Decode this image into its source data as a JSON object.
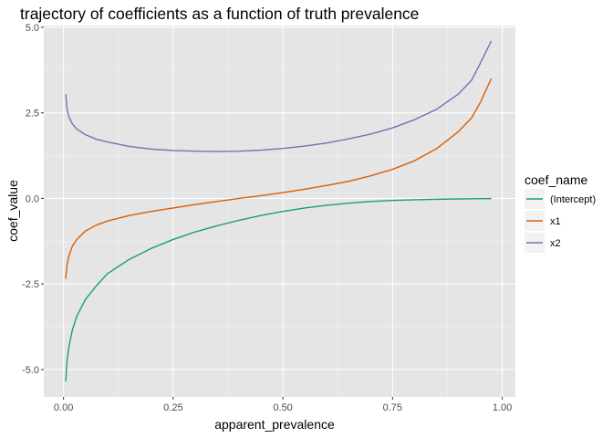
{
  "chart_data": {
    "type": "line",
    "title": "trajectory of coefficients as a function of truth prevalence",
    "xlabel": "apparent_prevalence",
    "ylabel": "coef_value",
    "xlim": [
      -0.045,
      1.03
    ],
    "ylim": [
      -5.8,
      5.05
    ],
    "x_ticks": [
      0.0,
      0.25,
      0.5,
      0.75,
      1.0
    ],
    "x_tick_labels": [
      "0.00",
      "0.25",
      "0.50",
      "0.75",
      "1.00"
    ],
    "y_ticks": [
      -5.0,
      -2.5,
      0.0,
      2.5,
      5.0
    ],
    "y_tick_labels": [
      "-5.0",
      "-2.5",
      "0.0",
      "2.5",
      "5.0"
    ],
    "grid": true,
    "background": "#e5e5e5",
    "legend": {
      "title": "coef_name",
      "position": "right"
    },
    "series": [
      {
        "name": "(Intercept)",
        "color": "#1b9e77",
        "x": [
          0.005,
          0.008,
          0.012,
          0.02,
          0.03,
          0.05,
          0.075,
          0.1,
          0.15,
          0.2,
          0.25,
          0.3,
          0.35,
          0.4,
          0.45,
          0.5,
          0.55,
          0.6,
          0.65,
          0.7,
          0.75,
          0.8,
          0.85,
          0.9,
          0.95,
          0.975
        ],
        "y": [
          -5.35,
          -4.75,
          -4.35,
          -3.85,
          -3.45,
          -2.95,
          -2.55,
          -2.2,
          -1.78,
          -1.46,
          -1.2,
          -0.98,
          -0.8,
          -0.64,
          -0.5,
          -0.38,
          -0.28,
          -0.2,
          -0.14,
          -0.09,
          -0.06,
          -0.04,
          -0.025,
          -0.015,
          -0.008,
          -0.005
        ]
      },
      {
        "name": "x1",
        "color": "#d95f02",
        "x": [
          0.005,
          0.008,
          0.012,
          0.02,
          0.03,
          0.05,
          0.075,
          0.1,
          0.15,
          0.2,
          0.25,
          0.3,
          0.35,
          0.4,
          0.45,
          0.5,
          0.55,
          0.6,
          0.65,
          0.7,
          0.75,
          0.8,
          0.85,
          0.9,
          0.93,
          0.95,
          0.975
        ],
        "y": [
          -2.35,
          -1.95,
          -1.7,
          -1.4,
          -1.2,
          -0.95,
          -0.78,
          -0.66,
          -0.5,
          -0.38,
          -0.28,
          -0.18,
          -0.09,
          0.0,
          0.08,
          0.17,
          0.27,
          0.38,
          0.5,
          0.66,
          0.85,
          1.1,
          1.45,
          1.95,
          2.35,
          2.8,
          3.5
        ]
      },
      {
        "name": "x2",
        "color": "#7570b3",
        "x": [
          0.005,
          0.008,
          0.012,
          0.02,
          0.03,
          0.05,
          0.075,
          0.1,
          0.15,
          0.2,
          0.25,
          0.3,
          0.35,
          0.4,
          0.45,
          0.5,
          0.55,
          0.6,
          0.65,
          0.7,
          0.75,
          0.8,
          0.85,
          0.9,
          0.93,
          0.95,
          0.975
        ],
        "y": [
          3.05,
          2.62,
          2.4,
          2.18,
          2.03,
          1.86,
          1.73,
          1.65,
          1.52,
          1.44,
          1.4,
          1.38,
          1.37,
          1.38,
          1.41,
          1.46,
          1.53,
          1.62,
          1.74,
          1.88,
          2.06,
          2.3,
          2.6,
          3.05,
          3.45,
          3.95,
          4.6
        ]
      }
    ]
  }
}
